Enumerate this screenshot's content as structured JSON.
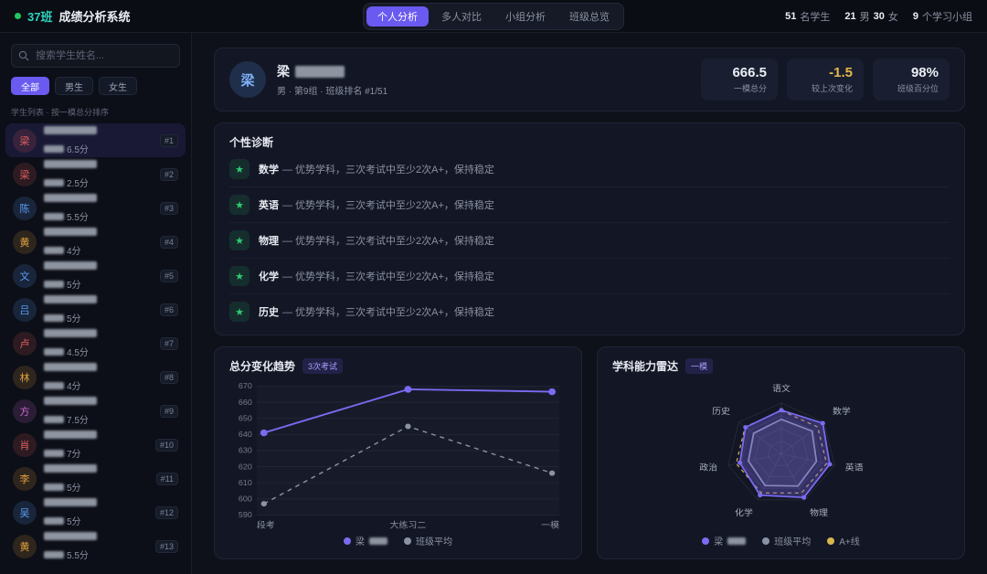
{
  "header": {
    "status_color": "#22c55e",
    "class_badge": "37班",
    "app_title": "成绩分析系统",
    "tabs": [
      {
        "key": "personal",
        "label": "个人分析",
        "active": true
      },
      {
        "key": "compare",
        "label": "多人对比",
        "active": false
      },
      {
        "key": "group",
        "label": "小组分析",
        "active": false
      },
      {
        "key": "overview",
        "label": "班级总览",
        "active": false
      }
    ],
    "stats": {
      "students_num": "51",
      "students_label": "名学生",
      "male_num": "21",
      "male_label": "男",
      "female_num": "30",
      "female_label": "女",
      "groups_num": "9",
      "groups_label": "个学习小组"
    }
  },
  "sidebar": {
    "search_placeholder": "搜索学生姓名...",
    "filters": [
      {
        "key": "all",
        "label": "全部",
        "active": true
      },
      {
        "key": "male",
        "label": "男生",
        "active": false
      },
      {
        "key": "female",
        "label": "女生",
        "active": false
      }
    ],
    "list_caption": "学生列表 · 按一模总分排序",
    "students": [
      {
        "initial": "梁",
        "color": "#e06060",
        "score_fragment": "6.5分",
        "rank": "#1",
        "selected": true
      },
      {
        "initial": "梁",
        "color": "#e06060",
        "score_fragment": "2.5分",
        "rank": "#2",
        "selected": false
      },
      {
        "initial": "陈",
        "color": "#5b9cf5",
        "score_fragment": "5.5分",
        "rank": "#3",
        "selected": false
      },
      {
        "initial": "黄",
        "color": "#e3a23f",
        "score_fragment": "4分",
        "rank": "#4",
        "selected": false
      },
      {
        "initial": "文",
        "color": "#5b9cf5",
        "score_fragment": "5分",
        "rank": "#5",
        "selected": false
      },
      {
        "initial": "吕",
        "color": "#5b9cf5",
        "score_fragment": "5分",
        "rank": "#6",
        "selected": false
      },
      {
        "initial": "卢",
        "color": "#e06060",
        "score_fragment": "4.5分",
        "rank": "#7",
        "selected": false
      },
      {
        "initial": "林",
        "color": "#e3a23f",
        "score_fragment": "4分",
        "rank": "#8",
        "selected": false
      },
      {
        "initial": "方",
        "color": "#d069d6",
        "score_fragment": "7.5分",
        "rank": "#9",
        "selected": false
      },
      {
        "initial": "肖",
        "color": "#e06060",
        "score_fragment": "7分",
        "rank": "#10",
        "selected": false
      },
      {
        "initial": "李",
        "color": "#e3a23f",
        "score_fragment": "5分",
        "rank": "#11",
        "selected": false
      },
      {
        "initial": "吴",
        "color": "#5b9cf5",
        "score_fragment": "5分",
        "rank": "#12",
        "selected": false
      },
      {
        "initial": "黄",
        "color": "#e3a23f",
        "score_fragment": "5.5分",
        "rank": "#13",
        "selected": false
      },
      {
        "initial": "",
        "color": "#4a5164",
        "score_fragment": "",
        "rank": "",
        "selected": false
      }
    ]
  },
  "profile": {
    "initial": "梁",
    "name_prefix": "梁",
    "meta": "男 · 第9组 · 班级排名 #1/51",
    "stats": [
      {
        "value": "666.5",
        "label": "一模总分",
        "color": "#eceff5"
      },
      {
        "value": "-1.5",
        "label": "较上次变化",
        "color": "#e5b84b"
      },
      {
        "value": "98%",
        "label": "班级百分位",
        "color": "#eceff5"
      }
    ]
  },
  "diagnosis": {
    "title": "个性诊断",
    "items": [
      {
        "subject": "数学",
        "desc": "— 优势学科，三次考试中至少2次A+，保持稳定"
      },
      {
        "subject": "英语",
        "desc": "— 优势学科，三次考试中至少2次A+，保持稳定"
      },
      {
        "subject": "物理",
        "desc": "— 优势学科，三次考试中至少2次A+，保持稳定"
      },
      {
        "subject": "化学",
        "desc": "— 优势学科，三次考试中至少2次A+，保持稳定"
      },
      {
        "subject": "历史",
        "desc": "— 优势学科，三次考试中至少2次A+，保持稳定"
      }
    ]
  },
  "chart_data": [
    {
      "type": "line",
      "title": "总分变化趋势",
      "badge": "3次考试",
      "x": [
        "段考",
        "大练习二",
        "一模"
      ],
      "series": [
        {
          "name": "梁",
          "redacted": true,
          "values": [
            641,
            668,
            666.5
          ],
          "color": "#7c6af2",
          "style": "solid"
        },
        {
          "name": "班级平均",
          "redacted": false,
          "values": [
            597,
            645,
            616
          ],
          "color": "#8a92a3",
          "style": "dashed"
        }
      ],
      "ylim": [
        590,
        670
      ],
      "yticks": [
        590,
        600,
        610,
        620,
        630,
        640,
        650,
        660,
        670
      ],
      "grid": true,
      "legend_position": "bottom"
    },
    {
      "type": "radar",
      "title": "学科能力雷达",
      "badge": "一模",
      "axes": [
        "语文",
        "数学",
        "英语",
        "物理",
        "化学",
        "政治",
        "历史"
      ],
      "max": 100,
      "series": [
        {
          "name": "梁",
          "redacted": true,
          "values": [
            86,
            97,
            91,
            95,
            90,
            78,
            84
          ],
          "color": "#7c6af2",
          "fill": true,
          "style": "solid"
        },
        {
          "name": "班级平均",
          "redacted": false,
          "values": [
            68,
            72,
            66,
            70,
            69,
            62,
            65
          ],
          "color": "#8a92a3",
          "fill": true,
          "style": "solid"
        },
        {
          "name": "A+线",
          "redacted": false,
          "values": [
            85,
            85,
            85,
            85,
            85,
            85,
            85
          ],
          "color": "#d9b64e",
          "fill": false,
          "style": "dashed"
        }
      ],
      "legend_position": "bottom"
    }
  ]
}
